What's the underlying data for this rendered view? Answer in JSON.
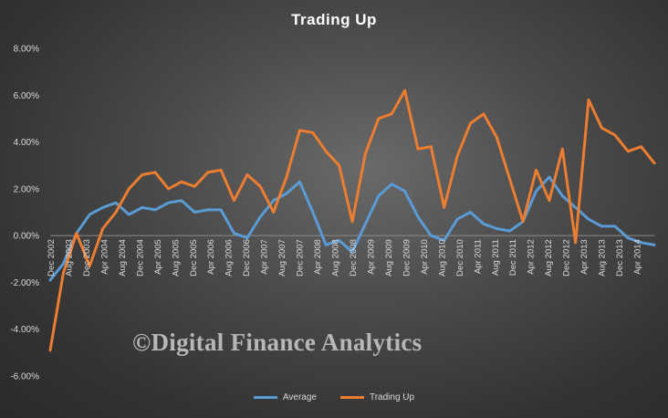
{
  "chart_data": {
    "type": "line",
    "title": "Trading  Up",
    "xlabel": "",
    "ylabel": "",
    "ylim": [
      -6,
      8
    ],
    "y_ticks": [
      "8.00%",
      "6.00%",
      "4.00%",
      "2.00%",
      "0.00%",
      "-2.00%",
      "-4.00%",
      "-6.00%"
    ],
    "y_tick_values": [
      8,
      6,
      4,
      2,
      0,
      -2,
      -4,
      -6
    ],
    "y_unit": "%",
    "grid": false,
    "legend_position": "bottom",
    "x_tick_labels": [
      "Dec 2002",
      "Aug 2003",
      "Dec 2003",
      "Apr 2004",
      "Aug 2004",
      "Dec 2004",
      "Apr 2005",
      "Aug 2005",
      "Dec 2005",
      "Apr 2006",
      "Aug 2006",
      "Dec 2006",
      "Apr 2007",
      "Aug 2007",
      "Dec 2007",
      "Apr 2008",
      "Aug 2008",
      "Dec 2008",
      "Apr 2009",
      "Aug 2009",
      "Dec 2009",
      "Apr 2010",
      "Aug 2010",
      "Dec 2010",
      "Apr 2011",
      "Aug 2011",
      "Dec 2011",
      "Apr 2012",
      "Aug 2012",
      "Dec 2012",
      "Apr 2013",
      "Aug 2013",
      "Dec 2013",
      "Apr 2014"
    ],
    "series": [
      {
        "name": "Average",
        "color": "#5b9bd5",
        "values": [
          -1.9,
          -1.2,
          0.1,
          0.9,
          1.2,
          1.4,
          0.9,
          1.2,
          1.1,
          1.4,
          1.5,
          1.0,
          1.1,
          1.1,
          0.1,
          -0.1,
          0.8,
          1.5,
          1.8,
          2.3,
          1.0,
          -0.4,
          -0.2,
          -0.7,
          0.5,
          1.7,
          2.2,
          1.9,
          0.8,
          0.0,
          -0.2,
          0.7,
          1.0,
          0.5,
          0.3,
          0.2,
          0.6,
          1.9,
          2.5,
          1.7,
          1.2,
          0.7,
          0.4,
          0.4,
          -0.1,
          -0.3,
          -0.4
        ]
      },
      {
        "name": "Trading Up",
        "color": "#ed7d31",
        "values": [
          -4.9,
          -1.6,
          0.1,
          -1.3,
          0.3,
          1.0,
          2.0,
          2.6,
          2.7,
          2.0,
          2.3,
          2.1,
          2.7,
          2.8,
          1.5,
          2.6,
          2.1,
          1.0,
          2.5,
          4.5,
          4.4,
          3.6,
          3.0,
          0.6,
          3.5,
          5.0,
          5.2,
          6.2,
          3.7,
          3.8,
          1.2,
          3.4,
          4.8,
          5.2,
          4.2,
          2.4,
          0.6,
          2.8,
          1.5,
          3.7,
          -0.3,
          5.8,
          4.6,
          4.3,
          3.6,
          3.8,
          3.1
        ]
      }
    ]
  },
  "watermark": "©Digital Finance Analytics"
}
